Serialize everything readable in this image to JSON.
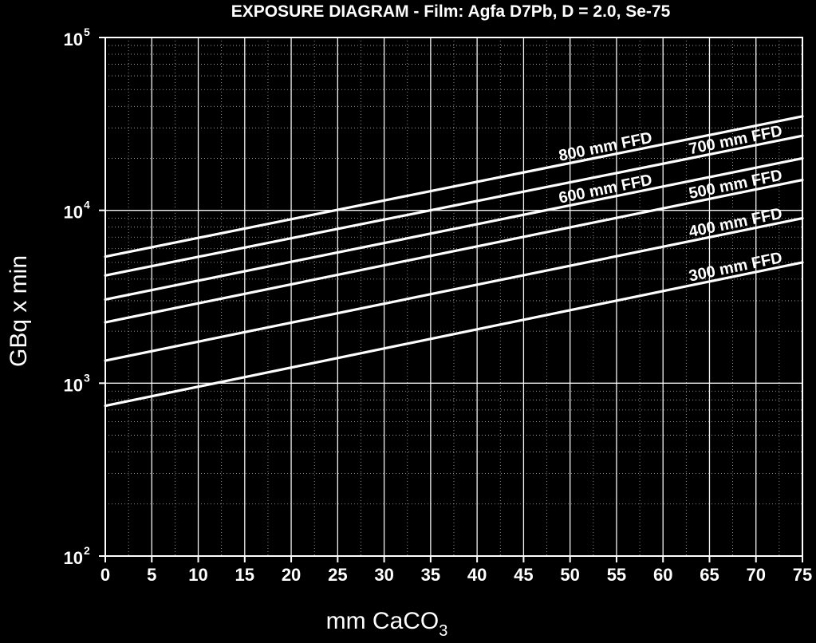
{
  "chart_data": {
    "type": "line",
    "title": "EXPOSURE DIAGRAM - Film: Agfa D7Pb, D = 2.0, Se-75",
    "xlabel": {
      "main": "mm CaCO",
      "sub": "3"
    },
    "ylabel": "GBq x min",
    "xlim": [
      0,
      75
    ],
    "ylim": [
      100,
      100000
    ],
    "yscale": "log",
    "x_ticks": [
      0,
      5,
      10,
      15,
      20,
      25,
      30,
      35,
      40,
      45,
      50,
      55,
      60,
      65,
      70,
      75
    ],
    "x_tick_labels": [
      "0",
      "5",
      "10",
      "15",
      "20",
      "25",
      "30",
      "35",
      "40",
      "45",
      "50",
      "55",
      "60",
      "65",
      "70",
      "75"
    ],
    "y_ticks": [
      {
        "value": 100,
        "base": "10",
        "exp": "2"
      },
      {
        "value": 1000,
        "base": "10",
        "exp": "3"
      },
      {
        "value": 10000,
        "base": "10",
        "exp": "4"
      },
      {
        "value": 100000,
        "base": "10",
        "exp": "5"
      }
    ],
    "grid": true,
    "line_color": "#ffffff",
    "background": "#000000",
    "series": [
      {
        "name": "800 mm FFD",
        "x": [
          0,
          75
        ],
        "y": [
          5400,
          35000
        ],
        "label_at_x": 59
      },
      {
        "name": "700 mm FFD",
        "x": [
          0,
          75
        ],
        "y": [
          4200,
          27000
        ],
        "label_at_x": 73
      },
      {
        "name": "600 mm FFD",
        "x": [
          0,
          75
        ],
        "y": [
          3050,
          20000
        ],
        "label_at_x": 59
      },
      {
        "name": "500 mm FFD",
        "x": [
          0,
          75
        ],
        "y": [
          2250,
          15000
        ],
        "label_at_x": 73
      },
      {
        "name": "400 mm FFD",
        "x": [
          0,
          75
        ],
        "y": [
          1350,
          9000
        ],
        "label_at_x": 73
      },
      {
        "name": "300 mm FFD",
        "x": [
          0,
          75
        ],
        "y": [
          740,
          5000
        ],
        "label_at_x": 73
      }
    ]
  }
}
